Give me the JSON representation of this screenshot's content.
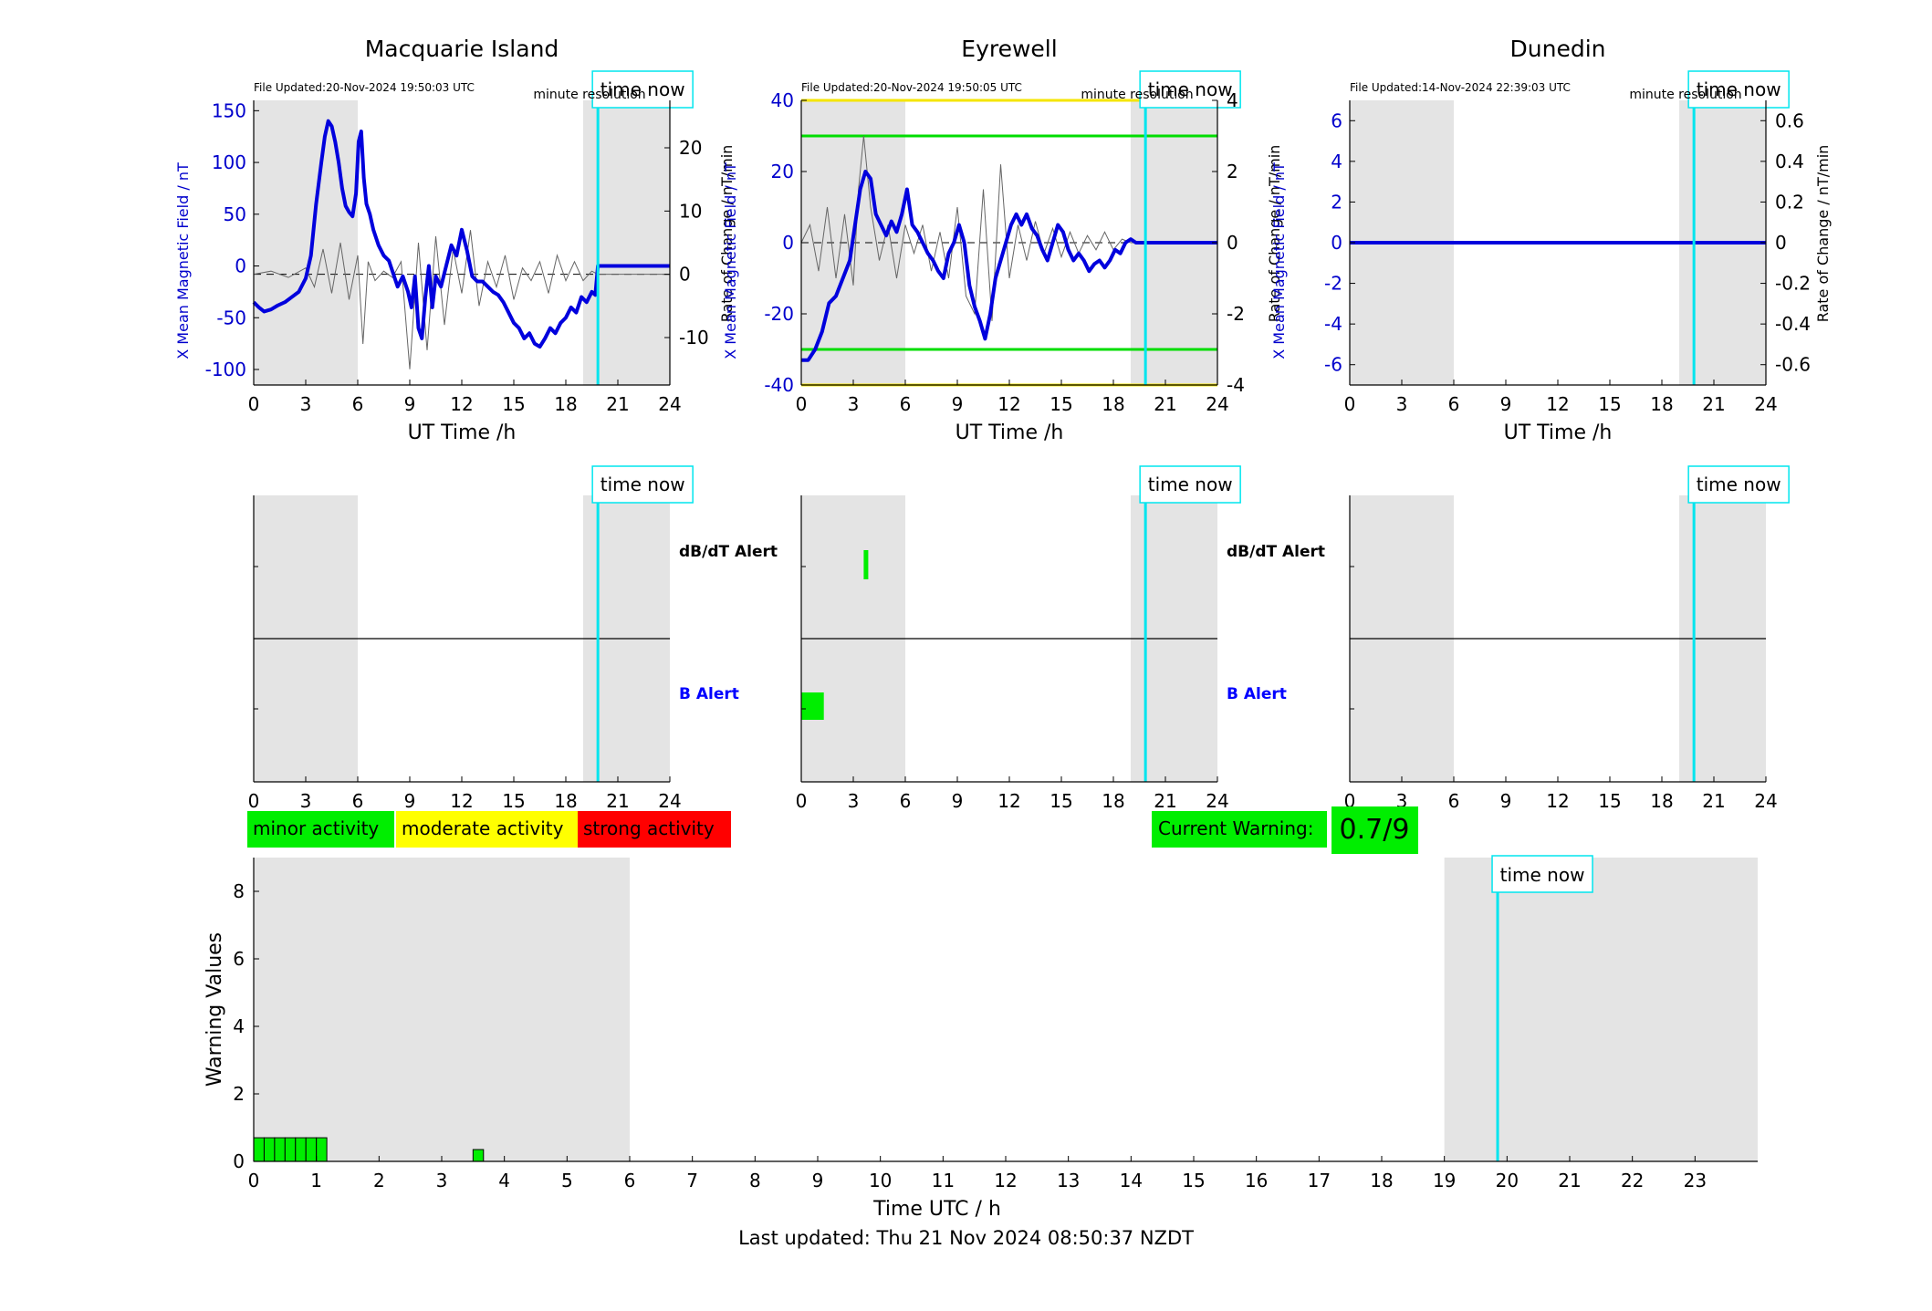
{
  "colors": {
    "shade": "#e4e4e4",
    "field_line": "#0000dd",
    "axis_left": "#0000cc",
    "rate_line": "#666666",
    "time_now": "#00e5ee",
    "minor": "#00ee00",
    "moderate": "#ffff00",
    "strong": "#ff0000",
    "threshold_green": "#00dd00",
    "threshold_yellow": "#f5e500",
    "b_alert_label": "#0000ff"
  },
  "common": {
    "xlabel": "UT Time /h",
    "x_ticks": [
      "0",
      "3",
      "6",
      "9",
      "12",
      "15",
      "18",
      "21",
      "24"
    ],
    "time_now_label": "time now",
    "time_now_hour": 19.85,
    "resolution_label": "minute resolution",
    "ylabel_left": "X Mean Magnetic Field / nT",
    "ylabel_right": "Rate of Change / nT/min",
    "dbdt_alert_label": "dB/dT Alert",
    "b_alert_label": "B Alert",
    "shaded_hours": [
      [
        0,
        6
      ],
      [
        19,
        24
      ]
    ]
  },
  "stations": [
    {
      "name": "Macquarie Island",
      "file_updated": "File Updated:20-Nov-2024 19:50:03 UTC",
      "left_ticks": [
        "150",
        "100",
        "50",
        "0",
        "-50",
        "-100"
      ],
      "right_ticks": [
        "20",
        "10",
        "0",
        "-10"
      ],
      "b_alerts": [],
      "dbdt_alerts": []
    },
    {
      "name": "Eyrewell",
      "file_updated": "File Updated:20-Nov-2024 19:50:05 UTC",
      "left_ticks": [
        "40",
        "20",
        "0",
        "-20",
        "-40"
      ],
      "right_ticks": [
        "4",
        "2",
        "0",
        "-2",
        "-4"
      ],
      "b_alerts": [
        [
          0,
          1.3
        ]
      ],
      "dbdt_alerts": [
        [
          3.6,
          3.85
        ]
      ]
    },
    {
      "name": "Dunedin",
      "file_updated": "File Updated:14-Nov-2024 22:39:03 UTC",
      "left_ticks": [
        "6",
        "4",
        "2",
        "0",
        "-2",
        "-4",
        "-6"
      ],
      "right_ticks": [
        "0.6",
        "0.4",
        "0.2",
        "0",
        "-0.2",
        "-0.4",
        "-0.6"
      ],
      "b_alerts": [],
      "dbdt_alerts": []
    }
  ],
  "legend": {
    "minor": "minor activity",
    "moderate": "moderate activity",
    "strong": "strong activity",
    "current_warning_label": "Current Warning:",
    "current_warning_value": "0.7/9"
  },
  "warning_chart": {
    "ylabel": "Warning Values",
    "xlabel": "Time UTC / h",
    "y_ticks": [
      "0",
      "2",
      "4",
      "6",
      "8"
    ],
    "x_ticks": [
      "0",
      "1",
      "2",
      "3",
      "4",
      "5",
      "6",
      "7",
      "8",
      "9",
      "10",
      "11",
      "12",
      "13",
      "14",
      "15",
      "16",
      "17",
      "18",
      "19",
      "20",
      "21",
      "22",
      "23"
    ]
  },
  "chart_data": [
    {
      "type": "line",
      "title": "Macquarie Island",
      "xlabel": "UT Time /h",
      "ylabel": "X Mean Magnetic Field / nT",
      "y2label": "Rate of Change / nT/min",
      "xlim": [
        0,
        24
      ],
      "ylim": [
        -115,
        160
      ],
      "y2lim": [
        -17.5,
        27.5
      ],
      "series": [
        {
          "axis": "left",
          "x": [
            0,
            0.3,
            0.6,
            1,
            1.4,
            1.8,
            2.2,
            2.6,
            3,
            3.3,
            3.6,
            3.9,
            4.1,
            4.3,
            4.5,
            4.7,
            4.9,
            5.1,
            5.3,
            5.5,
            5.7,
            5.9,
            6.05,
            6.2,
            6.35,
            6.5,
            6.7,
            6.9,
            7.2,
            7.5,
            7.8,
            8,
            8.3,
            8.6,
            8.9,
            9.1,
            9.3,
            9.5,
            9.7,
            9.9,
            10.1,
            10.3,
            10.5,
            10.8,
            11.1,
            11.4,
            11.7,
            12,
            12.3,
            12.6,
            12.9,
            13.2,
            13.5,
            13.8,
            14.1,
            14.4,
            14.7,
            15,
            15.3,
            15.6,
            15.9,
            16.2,
            16.5,
            16.8,
            17.1,
            17.4,
            17.7,
            18,
            18.3,
            18.6,
            18.9,
            19.2,
            19.5,
            19.7,
            19.85,
            24
          ],
          "y": [
            -35,
            -40,
            -44,
            -42,
            -38,
            -35,
            -30,
            -25,
            -12,
            10,
            60,
            100,
            125,
            140,
            135,
            120,
            100,
            75,
            58,
            52,
            48,
            70,
            120,
            130,
            85,
            60,
            50,
            35,
            20,
            10,
            5,
            -5,
            -20,
            -10,
            -25,
            -40,
            -10,
            -60,
            -70,
            -30,
            0,
            -40,
            -10,
            -20,
            0,
            20,
            10,
            35,
            15,
            -10,
            -15,
            -15,
            -20,
            -25,
            -28,
            -35,
            -45,
            -55,
            -60,
            -70,
            -65,
            -75,
            -78,
            -70,
            -60,
            -65,
            -55,
            -50,
            -40,
            -45,
            -30,
            -35,
            -25,
            -28,
            0,
            0
          ]
        },
        {
          "axis": "right",
          "x": [
            0,
            1,
            2,
            3,
            3.5,
            4,
            4.5,
            5,
            5.5,
            6,
            6.3,
            6.6,
            7,
            7.5,
            8,
            8.5,
            9,
            9.5,
            10,
            10.5,
            11,
            11.5,
            12,
            12.5,
            13,
            13.5,
            14,
            14.5,
            15,
            15.5,
            16,
            16.5,
            17,
            17.5,
            18,
            18.5,
            19,
            19.5,
            19.85,
            24
          ],
          "y": [
            0,
            0.5,
            -0.5,
            1,
            -2,
            4,
            -3,
            5,
            -4,
            3,
            -11,
            2,
            -1,
            0.5,
            -0.5,
            2,
            -15,
            5,
            -12,
            6,
            -8,
            4,
            -3,
            7,
            -5,
            2,
            -2,
            3,
            -4,
            1,
            -1,
            2,
            -3,
            3,
            -1,
            2,
            -1,
            0.5,
            0,
            0
          ]
        }
      ]
    },
    {
      "type": "line",
      "title": "Eyrewell",
      "xlabel": "UT Time /h",
      "ylabel": "X Mean Magnetic Field / nT",
      "y2label": "Rate of Change / nT/min",
      "xlim": [
        0,
        24
      ],
      "ylim": [
        -40,
        40
      ],
      "y2lim": [
        -4,
        4
      ],
      "thresholds_right": [
        {
          "value": 4,
          "level": "moderate"
        },
        {
          "value": 3,
          "level": "minor"
        },
        {
          "value": -3,
          "level": "minor"
        },
        {
          "value": -4,
          "level": "moderate"
        }
      ],
      "series": [
        {
          "axis": "left",
          "x": [
            0,
            0.4,
            0.8,
            1.2,
            1.6,
            2,
            2.4,
            2.8,
            3.1,
            3.4,
            3.7,
            4,
            4.3,
            4.6,
            4.9,
            5.2,
            5.5,
            5.8,
            6.1,
            6.4,
            6.7,
            7,
            7.3,
            7.6,
            7.9,
            8.2,
            8.5,
            8.8,
            9.1,
            9.4,
            9.7,
            10,
            10.3,
            10.6,
            10.9,
            11.2,
            11.5,
            11.8,
            12.1,
            12.4,
            12.7,
            13,
            13.3,
            13.6,
            13.9,
            14.2,
            14.5,
            14.8,
            15.1,
            15.4,
            15.7,
            16,
            16.3,
            16.6,
            16.9,
            17.2,
            17.5,
            17.8,
            18.1,
            18.4,
            18.7,
            19,
            19.3,
            24
          ],
          "y": [
            -33,
            -33,
            -30,
            -25,
            -17,
            -15,
            -10,
            -5,
            5,
            15,
            20,
            18,
            8,
            5,
            2,
            6,
            3,
            8,
            15,
            5,
            3,
            0,
            -3,
            -5,
            -8,
            -10,
            -3,
            0,
            5,
            0,
            -12,
            -18,
            -22,
            -27,
            -20,
            -10,
            -5,
            0,
            5,
            8,
            5,
            8,
            4,
            2,
            -2,
            -5,
            0,
            5,
            3,
            -2,
            -5,
            -3,
            -5,
            -8,
            -6,
            -5,
            -7,
            -5,
            -2,
            -3,
            0,
            1,
            0,
            0
          ]
        },
        {
          "axis": "right",
          "x": [
            0,
            0.5,
            1,
            1.5,
            2,
            2.5,
            3,
            3.3,
            3.6,
            4,
            4.5,
            5,
            5.5,
            6,
            6.5,
            7,
            7.5,
            8,
            8.5,
            9,
            9.5,
            10,
            10.5,
            11,
            11.5,
            12,
            12.5,
            13,
            13.5,
            14,
            14.5,
            15,
            15.5,
            16,
            16.5,
            17,
            17.5,
            18,
            18.5,
            19,
            24
          ],
          "y": [
            0,
            0.5,
            -0.8,
            1,
            -1,
            0.8,
            -1.2,
            1.5,
            3,
            1,
            -0.5,
            0.5,
            -1,
            0.5,
            -0.3,
            0.5,
            -0.8,
            0.3,
            -1,
            1,
            -1.5,
            -2,
            1.5,
            -2.2,
            2.2,
            -1,
            0.5,
            -0.5,
            0.6,
            -0.3,
            0.4,
            -0.4,
            0.3,
            -0.3,
            0.2,
            -0.2,
            0.3,
            -0.2,
            0.1,
            0,
            0
          ]
        }
      ]
    },
    {
      "type": "line",
      "title": "Dunedin",
      "xlabel": "UT Time /h",
      "ylabel": "X Mean Magnetic Field / nT",
      "y2label": "Rate of Change / nT/min",
      "xlim": [
        0,
        24
      ],
      "ylim": [
        -7,
        7
      ],
      "y2lim": [
        -0.7,
        0.7
      ],
      "series": [
        {
          "axis": "left",
          "x": [
            0,
            24
          ],
          "y": [
            0,
            0
          ]
        },
        {
          "axis": "right",
          "x": [
            0,
            24
          ],
          "y": [
            0,
            0
          ]
        }
      ]
    },
    {
      "type": "bar",
      "title": "",
      "xlabel": "Time UTC / h",
      "ylabel": "Warning Values",
      "xlim": [
        0,
        24
      ],
      "ylim": [
        0,
        9
      ],
      "bar_width_hours": 0.1667,
      "x": [
        0,
        0.1667,
        0.3333,
        0.5,
        0.6667,
        0.8333,
        1.0,
        3.5
      ],
      "values": [
        0.7,
        0.7,
        0.7,
        0.7,
        0.7,
        0.7,
        0.7,
        0.35
      ],
      "time_now_hour": 19.85,
      "shaded_hours": [
        [
          0,
          6
        ],
        [
          19,
          24
        ]
      ]
    }
  ]
}
